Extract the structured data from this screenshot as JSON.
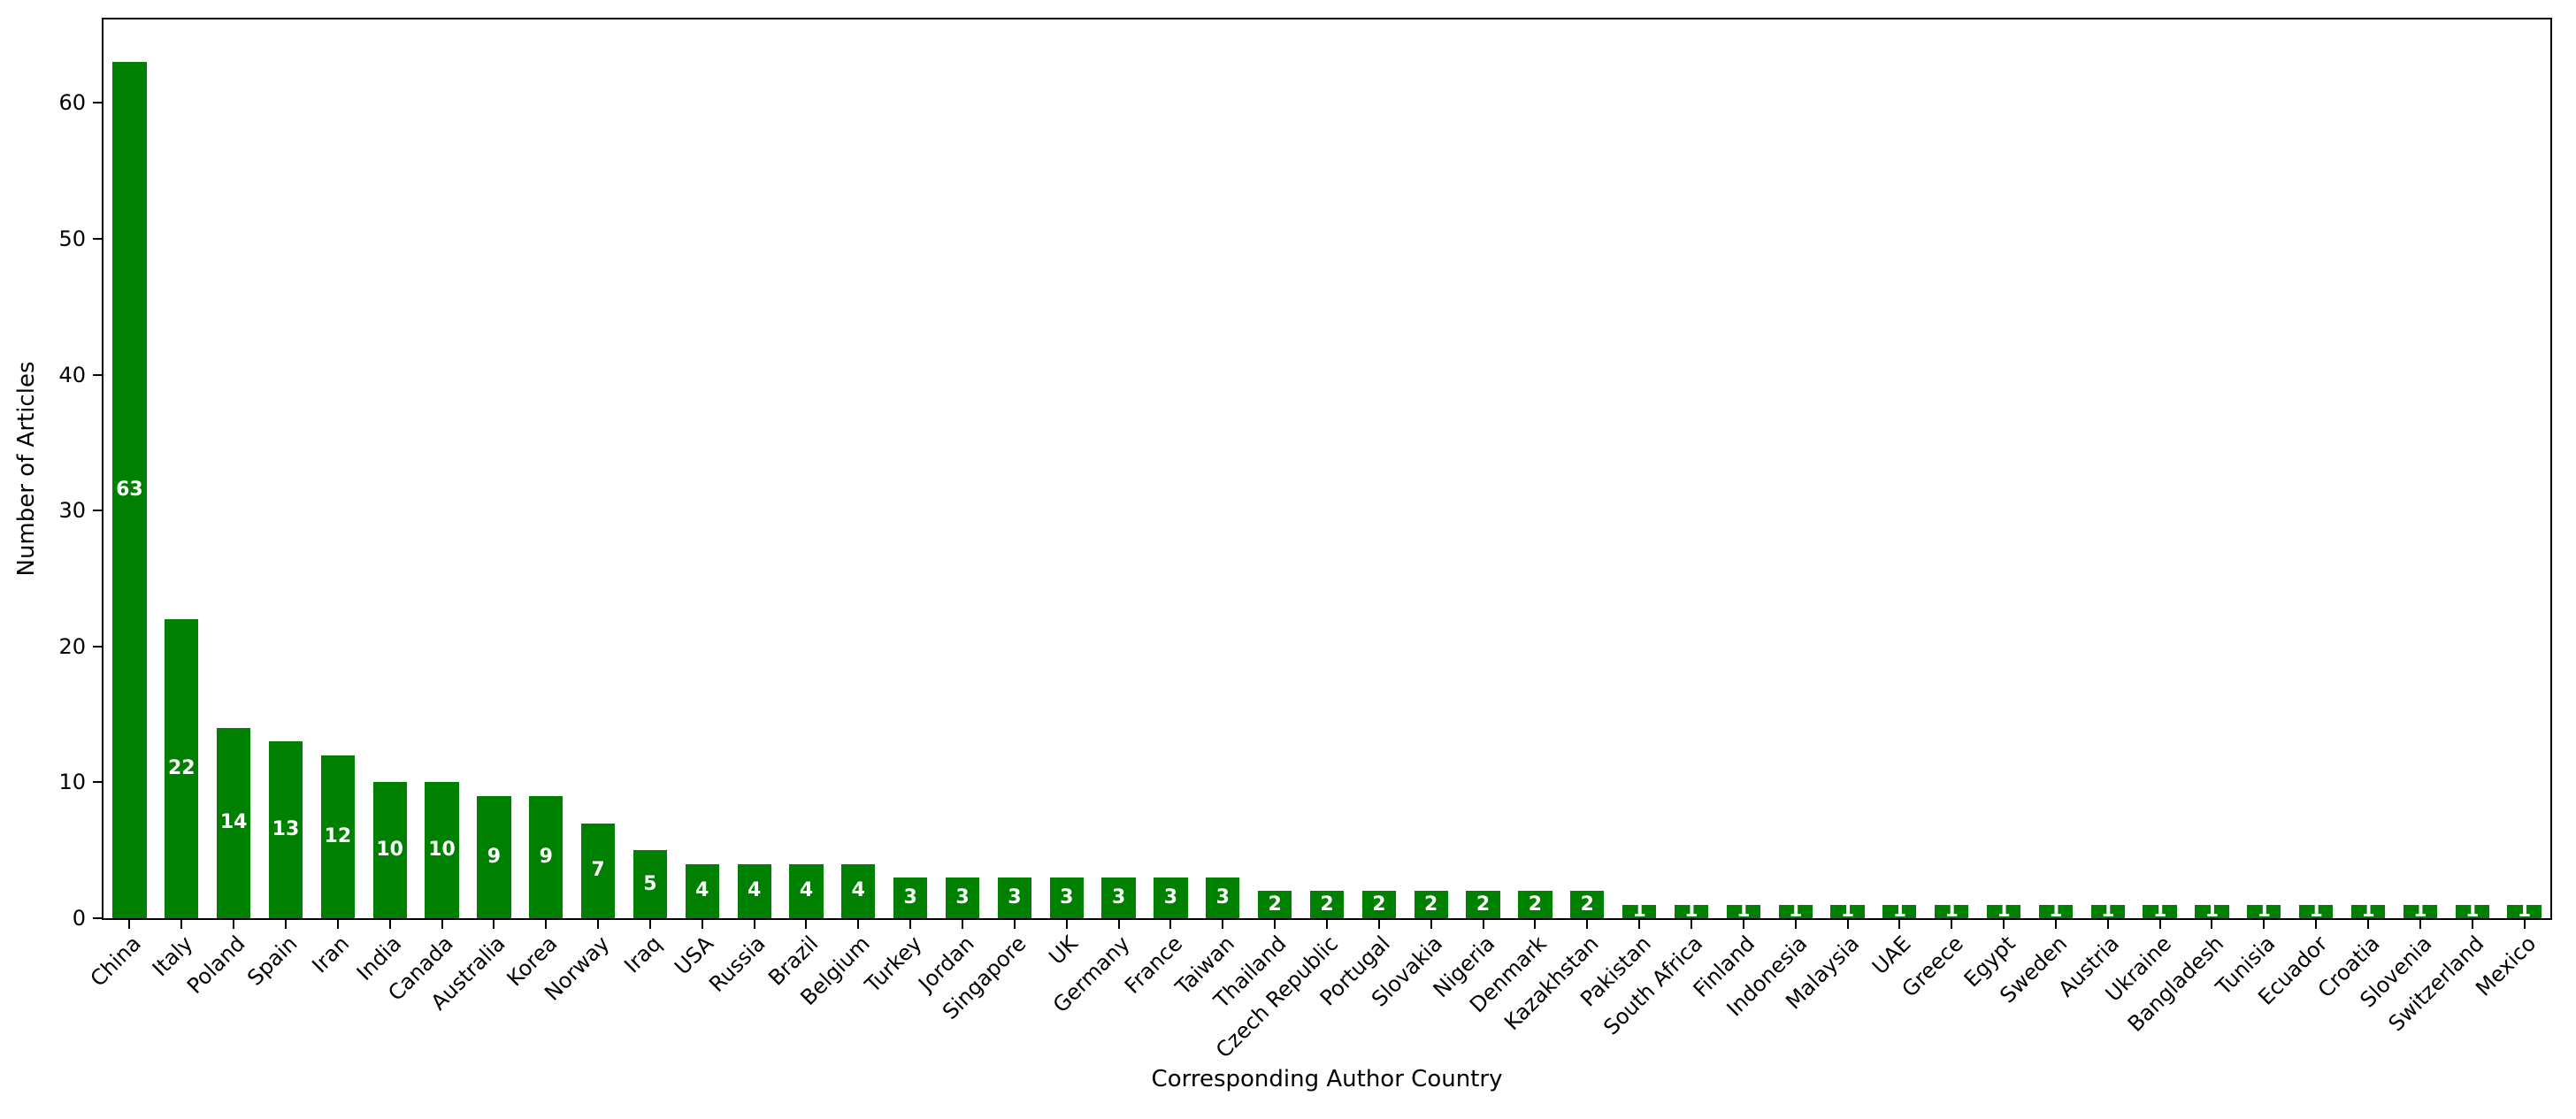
{
  "chart_data": {
    "type": "bar",
    "title": "",
    "xlabel": "Corresponding Author Country",
    "ylabel": "Number of Articles",
    "categories": [
      "China",
      "Italy",
      "Poland",
      "Spain",
      "Iran",
      "India",
      "Canada",
      "Australia",
      "Korea",
      "Norway",
      "Iraq",
      "USA",
      "Russia",
      "Brazil",
      "Belgium",
      "Turkey",
      "Jordan",
      "Singapore",
      "UK",
      "Germany",
      "France",
      "Taiwan",
      "Thailand",
      "Czech Republic",
      "Portugal",
      "Slovakia",
      "Nigeria",
      "Denmark",
      "Kazakhstan",
      "Pakistan",
      "South Africa",
      "Finland",
      "Indonesia",
      "Malaysia",
      "UAE",
      "Greece",
      "Egypt",
      "Sweden",
      "Austria",
      "Ukraine",
      "Bangladesh",
      "Tunisia",
      "Ecuador",
      "Croatia",
      "Slovenia",
      "Switzerland",
      "Mexico"
    ],
    "values": [
      63,
      22,
      14,
      13,
      12,
      10,
      10,
      9,
      9,
      7,
      5,
      4,
      4,
      4,
      4,
      3,
      3,
      3,
      3,
      3,
      3,
      3,
      2,
      2,
      2,
      2,
      2,
      2,
      2,
      1,
      1,
      1,
      1,
      1,
      1,
      1,
      1,
      1,
      1,
      1,
      1,
      1,
      1,
      1,
      1,
      1,
      1
    ],
    "bar_color": "#008000",
    "bar_label_color": "#ffffff",
    "axis_color": "#000000",
    "background_color": "#ffffff",
    "ylim": [
      0,
      66.15
    ],
    "yticks": [
      0,
      10,
      20,
      30,
      40,
      50,
      60
    ],
    "grid": false,
    "legend": null,
    "x_tick_rotation_deg": 45,
    "bar_width_fraction": 0.65
  }
}
